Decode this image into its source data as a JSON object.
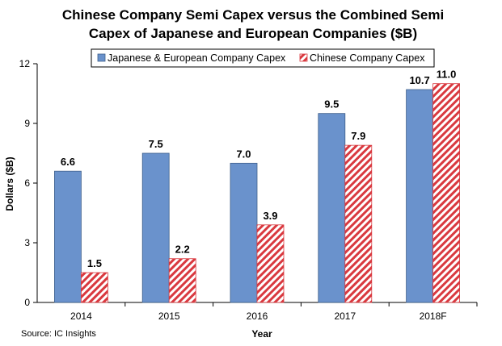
{
  "chart_data": {
    "type": "bar",
    "title_line1": "Chinese Company Semi Capex versus the Combined Semi",
    "title_line2": "Capex of Japanese and European Companies ($B)",
    "xlabel": "Year",
    "ylabel": "Dollars ($B)",
    "ylim": [
      0,
      12
    ],
    "yticks": [
      "0",
      "3",
      "6",
      "9",
      "12"
    ],
    "categories": [
      "2014",
      "2015",
      "2016",
      "2017",
      "2018F"
    ],
    "series": [
      {
        "name": "Japanese & European Company Capex",
        "values": [
          6.6,
          7.5,
          7.0,
          9.5,
          10.7
        ],
        "labels": [
          "6.6",
          "7.5",
          "7.0",
          "9.5",
          "10.7"
        ],
        "color": "#6a92cc",
        "pattern": "solid"
      },
      {
        "name": "Chinese Company Capex",
        "values": [
          1.5,
          2.2,
          3.9,
          7.9,
          11.0
        ],
        "labels": [
          "1.5",
          "2.2",
          "3.9",
          "7.9",
          "11.0"
        ],
        "color": "#d9393f",
        "pattern": "diagonal-hatch"
      }
    ],
    "legend_position": "top",
    "grid": false,
    "source": "Source: IC Insights"
  }
}
